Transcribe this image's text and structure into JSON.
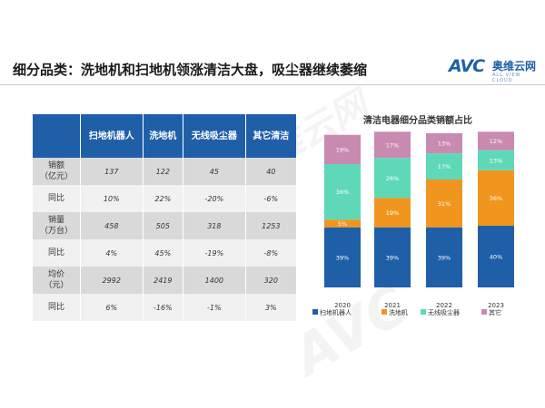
{
  "header": {
    "title": "细分品类：洗地机和扫地机领涨清洁大盘，吸尘器继续萎缩",
    "logo_mark": "AVC",
    "logo_cn": "奥维云网",
    "logo_sub": "ALL VIEW CLOUD"
  },
  "table": {
    "columns": [
      "",
      "扫地机器人",
      "洗地机",
      "无线吸尘器",
      "其它清洁"
    ],
    "rows": [
      {
        "label": "销额\n（亿元）",
        "cells": [
          "137",
          "122",
          "45",
          "40"
        ]
      },
      {
        "label": "同比",
        "cells": [
          "10%",
          "22%",
          "-20%",
          "-6%"
        ]
      },
      {
        "label": "销量\n（万台）",
        "cells": [
          "458",
          "505",
          "318",
          "1253"
        ]
      },
      {
        "label": "同比",
        "cells": [
          "4%",
          "45%",
          "-19%",
          "-8%"
        ]
      },
      {
        "label": "均价\n（元）",
        "cells": [
          "2992",
          "2419",
          "1400",
          "320"
        ]
      },
      {
        "label": "同比",
        "cells": [
          "6%",
          "-16%",
          "-1%",
          "3%"
        ]
      }
    ]
  },
  "chart_data": {
    "type": "bar",
    "stacked": true,
    "percent": true,
    "title": "清洁电器细分品类销额占比",
    "categories": [
      "2020",
      "2021",
      "2022",
      "2023"
    ],
    "series": [
      {
        "name": "扫地机器人",
        "color": "#1f5fa8",
        "values": [
          39,
          39,
          39,
          40
        ]
      },
      {
        "name": "洗地机",
        "color": "#f0961e",
        "values": [
          5,
          19,
          31,
          36
        ]
      },
      {
        "name": "无线吸尘器",
        "color": "#5fd8b8",
        "values": [
          36,
          26,
          17,
          13
        ]
      },
      {
        "name": "其它",
        "color": "#c88ab0",
        "values": [
          19,
          17,
          13,
          12
        ]
      }
    ],
    "legend_position": "bottom",
    "ylim": [
      0,
      100
    ],
    "grid": false
  }
}
